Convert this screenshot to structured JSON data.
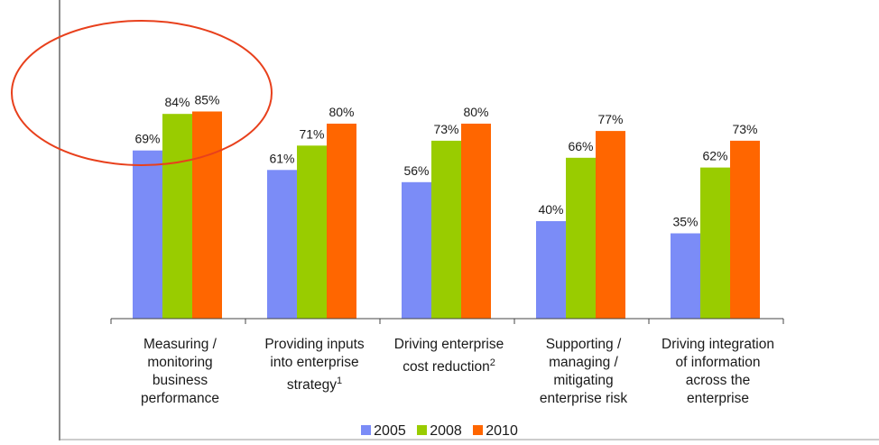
{
  "colors": {
    "series_2005": "#7b8cf7",
    "series_2008": "#99cc00",
    "series_2010": "#ff6600",
    "highlight_circle": "#e8401c",
    "axis": "#444444"
  },
  "chart_data": {
    "type": "bar",
    "categories": [
      "Measuring / monitoring business performance",
      "Providing inputs into enterprise strategy",
      "Driving enterprise cost reduction",
      "Supporting / managing / mitigating enterprise risk",
      "Driving integration of information across the enterprise"
    ],
    "category_lines": [
      [
        "Measuring /",
        "monitoring",
        "business",
        "performance"
      ],
      [
        "Providing inputs",
        "into enterprise",
        "strategy"
      ],
      [
        "Driving enterprise",
        "cost reduction"
      ],
      [
        "Supporting /",
        "managing /",
        "mitigating",
        "enterprise risk"
      ],
      [
        "Driving integration",
        "of information",
        "across the",
        "enterprise"
      ]
    ],
    "category_superscripts": [
      "",
      "1",
      "2",
      "",
      ""
    ],
    "series": [
      {
        "name": "2005",
        "values": [
          69,
          61,
          56,
          40,
          35
        ]
      },
      {
        "name": "2008",
        "values": [
          84,
          71,
          73,
          66,
          62
        ]
      },
      {
        "name": "2010",
        "values": [
          85,
          80,
          80,
          77,
          73
        ]
      }
    ],
    "value_suffix": "%",
    "ylim": [
      0,
      100
    ],
    "legend_position": "bottom",
    "grid": false,
    "highlight": "ellipse around first category"
  }
}
